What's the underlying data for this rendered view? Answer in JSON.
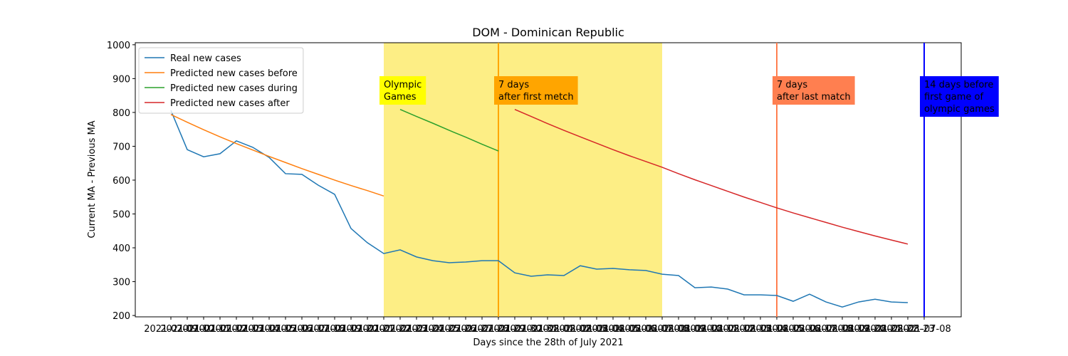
{
  "chart_data": {
    "type": "line",
    "title": "DOM - Dominican Republic",
    "x_label": "Days since the 28th of July 2021",
    "y_label": "Current MA - Previous MA",
    "categories": [
      "2021-07-09",
      "2021-07-10",
      "2021-07-11",
      "2021-07-12",
      "2021-07-13",
      "2021-07-14",
      "2021-07-15",
      "2021-07-16",
      "2021-07-17",
      "2021-07-18",
      "2021-07-19",
      "2021-07-20",
      "2021-07-21",
      "2021-07-22",
      "2021-07-23",
      "2021-07-24",
      "2021-07-25",
      "2021-07-26",
      "2021-07-27",
      "2021-07-28",
      "2021-07-29",
      "2021-07-30",
      "2021-07-31",
      "2021-08-01",
      "2021-08-02",
      "2021-08-03",
      "2021-08-04",
      "2021-08-05",
      "2021-08-06",
      "2021-08-07",
      "2021-08-08",
      "2021-08-09",
      "2021-08-10",
      "2021-08-11",
      "2021-08-12",
      "2021-08-13",
      "2021-08-14",
      "2021-08-15",
      "2021-08-16",
      "2021-08-17",
      "2021-08-18",
      "2021-08-19",
      "2021-08-20",
      "2021-08-21",
      "2021-08-22",
      "2021-08-23",
      "2021-07-08"
    ],
    "ylim": [
      196,
      1006
    ],
    "yticks": [
      200,
      300,
      400,
      500,
      600,
      700,
      800,
      900,
      1000
    ],
    "legend": "upper left",
    "series": [
      {
        "name": "Real new cases",
        "color": "#1f77b4",
        "values": [
          806,
          690,
          669,
          678,
          716,
          697,
          667,
          619,
          617,
          585,
          558,
          457,
          415,
          383,
          394,
          373,
          362,
          356,
          358,
          362,
          362,
          326,
          316,
          320,
          318,
          347,
          337,
          339,
          335,
          333,
          322,
          318,
          282,
          284,
          278,
          261,
          261,
          259,
          242,
          263,
          240,
          225,
          240,
          248,
          240,
          238,
          null
        ]
      },
      {
        "name": "Predicted new cases before",
        "color": "#ff7f0e",
        "values": [
          794,
          771,
          749,
          728,
          708,
          689,
          670,
          652,
          634,
          617,
          600,
          584,
          569,
          553,
          null,
          null,
          null,
          null,
          null,
          null,
          null,
          null,
          null,
          null,
          null,
          null,
          null,
          null,
          null,
          null,
          null,
          null,
          null,
          null,
          null,
          null,
          null,
          null,
          null,
          null,
          null,
          null,
          null,
          null,
          null,
          null,
          null
        ]
      },
      {
        "name": "Predicted new cases during",
        "color": "#2ca02c",
        "values": [
          null,
          null,
          null,
          null,
          null,
          null,
          null,
          null,
          null,
          null,
          null,
          null,
          null,
          null,
          809,
          788,
          768,
          747,
          727,
          706,
          686,
          null,
          null,
          null,
          null,
          null,
          null,
          null,
          null,
          null,
          null,
          null,
          null,
          null,
          null,
          null,
          null,
          null,
          null,
          null,
          null,
          null,
          null,
          null,
          null,
          null,
          null
        ]
      },
      {
        "name": "Predicted new cases after",
        "color": "#d62728",
        "values": [
          null,
          null,
          null,
          null,
          null,
          null,
          null,
          null,
          null,
          null,
          null,
          null,
          null,
          null,
          null,
          null,
          null,
          null,
          null,
          null,
          null,
          809,
          788,
          767,
          747,
          728,
          709,
          690,
          672,
          655,
          638,
          619,
          601,
          584,
          567,
          550,
          534,
          518,
          503,
          489,
          475,
          461,
          448,
          435,
          423,
          411,
          null
        ]
      }
    ],
    "shaded_span": {
      "from": "2021-07-22",
      "to": "2021-08-08",
      "color": "#fdee85"
    },
    "annotations": [
      {
        "x": "2021-07-22",
        "lines": [
          "Olympic",
          "Games"
        ],
        "background": "#ffff00",
        "text_color": "#000000"
      },
      {
        "x": "2021-07-29",
        "lines": [
          "7 days",
          "after first metch"
        ],
        "background": "#ffa500",
        "text_color": "#000000",
        "line_color": "#ffa500"
      },
      {
        "x": "2021-08-15",
        "lines": [
          "7 days",
          "after last match"
        ],
        "background": "#ff7f50",
        "text_color": "#000000",
        "line_color": "#ff7f50"
      },
      {
        "x": "2021-07-08",
        "lines": [
          "14 days before",
          "first game of",
          "olympic games"
        ],
        "background": "#0000ff",
        "text_color": "#ffffff",
        "line_color": "#0000ff"
      }
    ]
  }
}
